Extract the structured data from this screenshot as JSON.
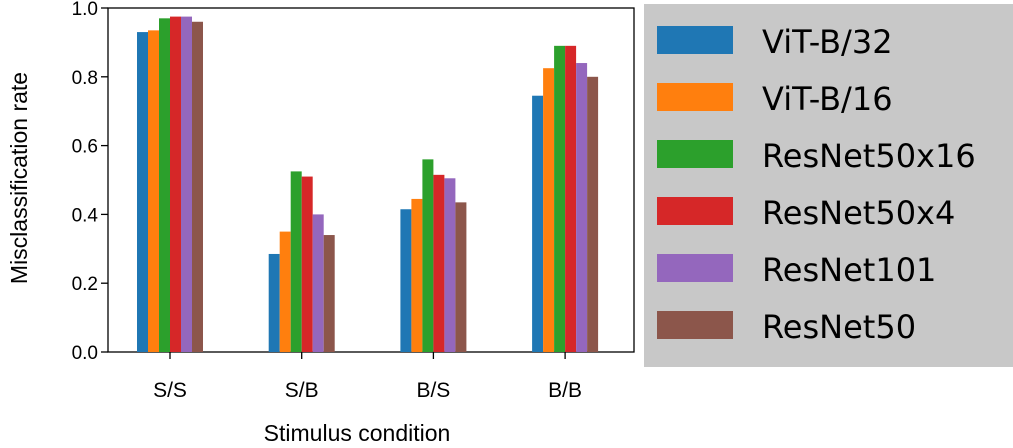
{
  "chart_data": {
    "type": "bar",
    "xlabel": "Stimulus condition",
    "ylabel": "Misclassification rate",
    "categories": [
      "S/S",
      "S/B",
      "B/S",
      "B/B"
    ],
    "ylim": [
      0.0,
      1.0
    ],
    "yticks": [
      "0.0",
      "0.2",
      "0.4",
      "0.6",
      "0.8",
      "1.0"
    ],
    "grid": false,
    "legend_placement": "right, outside plot",
    "legend_background": "#c8c8c8",
    "series": [
      {
        "name": "ViT-B/32",
        "color": "#1f77b4",
        "values": [
          0.93,
          0.285,
          0.415,
          0.745
        ]
      },
      {
        "name": "ViT-B/16",
        "color": "#ff7f0e",
        "values": [
          0.935,
          0.35,
          0.445,
          0.825
        ]
      },
      {
        "name": "ResNet50x16",
        "color": "#2ca02c",
        "values": [
          0.97,
          0.525,
          0.56,
          0.89
        ]
      },
      {
        "name": "ResNet50x4",
        "color": "#d62728",
        "values": [
          0.975,
          0.51,
          0.515,
          0.89
        ]
      },
      {
        "name": "ResNet101",
        "color": "#9467bd",
        "values": [
          0.975,
          0.4,
          0.505,
          0.84
        ]
      },
      {
        "name": "ResNet50",
        "color": "#8c564b",
        "values": [
          0.96,
          0.34,
          0.435,
          0.8
        ]
      }
    ]
  }
}
